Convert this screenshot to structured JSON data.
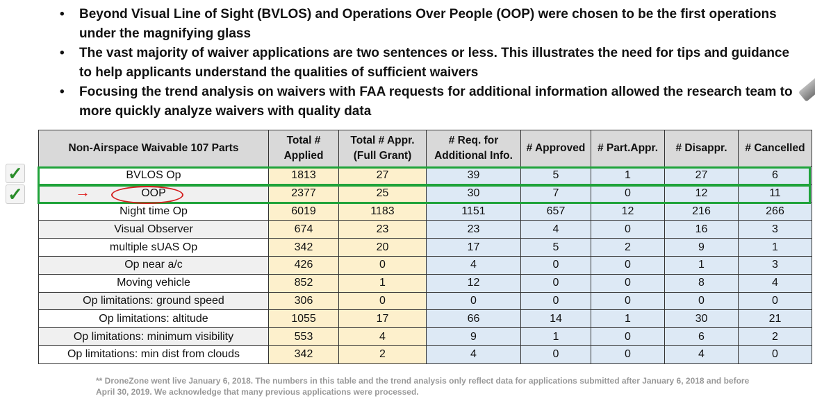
{
  "bullets": [
    "Beyond Visual Line of Sight (BVLOS) and Operations Over People (OOP) were chosen to be the first operations under the magnifying glass",
    "The vast majority of waiver applications are two sentences or less. This illustrates the need for tips and guidance to help applicants understand the qualities of sufficient waivers",
    "Focusing the trend analysis on waivers with FAA requests for additional information allowed the research team to more quickly analyze waivers with quality data"
  ],
  "bullet_glyph": "•",
  "table": {
    "headers": [
      "Non-Airspace Waivable 107 Parts",
      "Total # Applied",
      "Total # Appr. (Full Grant)",
      "# Req. for Additional Info.",
      "# Approved",
      "# Part.Appr.",
      "# Disappr.",
      "# Cancelled"
    ],
    "rows": [
      [
        "BVLOS Op",
        "1813",
        "27",
        "39",
        "5",
        "1",
        "27",
        "6"
      ],
      [
        "OOP",
        "2377",
        "25",
        "30",
        "7",
        "0",
        "12",
        "11"
      ],
      [
        "Night time Op",
        "6019",
        "1183",
        "1151",
        "657",
        "12",
        "216",
        "266"
      ],
      [
        "Visual Observer",
        "674",
        "23",
        "23",
        "4",
        "0",
        "16",
        "3"
      ],
      [
        "multiple sUAS Op",
        "342",
        "20",
        "17",
        "5",
        "2",
        "9",
        "1"
      ],
      [
        "Op near a/c",
        "426",
        "0",
        "4",
        "0",
        "0",
        "1",
        "3"
      ],
      [
        "Moving vehicle",
        "852",
        "1",
        "12",
        "0",
        "0",
        "8",
        "4"
      ],
      [
        "Op limitations: ground speed",
        "306",
        "0",
        "0",
        "0",
        "0",
        "0",
        "0"
      ],
      [
        "Op limitations: altitude",
        "1055",
        "17",
        "66",
        "14",
        "1",
        "30",
        "21"
      ],
      [
        "Op limitations: minimum visibility",
        "553",
        "4",
        "9",
        "1",
        "0",
        "6",
        "2"
      ],
      [
        "Op limitations: min dist from clouds",
        "342",
        "2",
        "4",
        "0",
        "0",
        "4",
        "0"
      ]
    ],
    "highlighted_rows": [
      "BVLOS Op",
      "OOP"
    ]
  },
  "annotations": {
    "check_glyph": "✓",
    "arrow_glyph": "→",
    "highlight_color": "#1fa33a",
    "circle_color": "#d42020"
  },
  "footnote": "** DroneZone went live January 6, 2018.  The numbers in this table and the trend analysis only reflect data for applications submitted after January 6, 2018 and before April 30, 2019.  We acknowledge that many previous applications were processed.",
  "colors": {
    "header": "#d9d9d9",
    "applied_cols": "#fdf0cc",
    "info_cols": "#dde9f5"
  }
}
